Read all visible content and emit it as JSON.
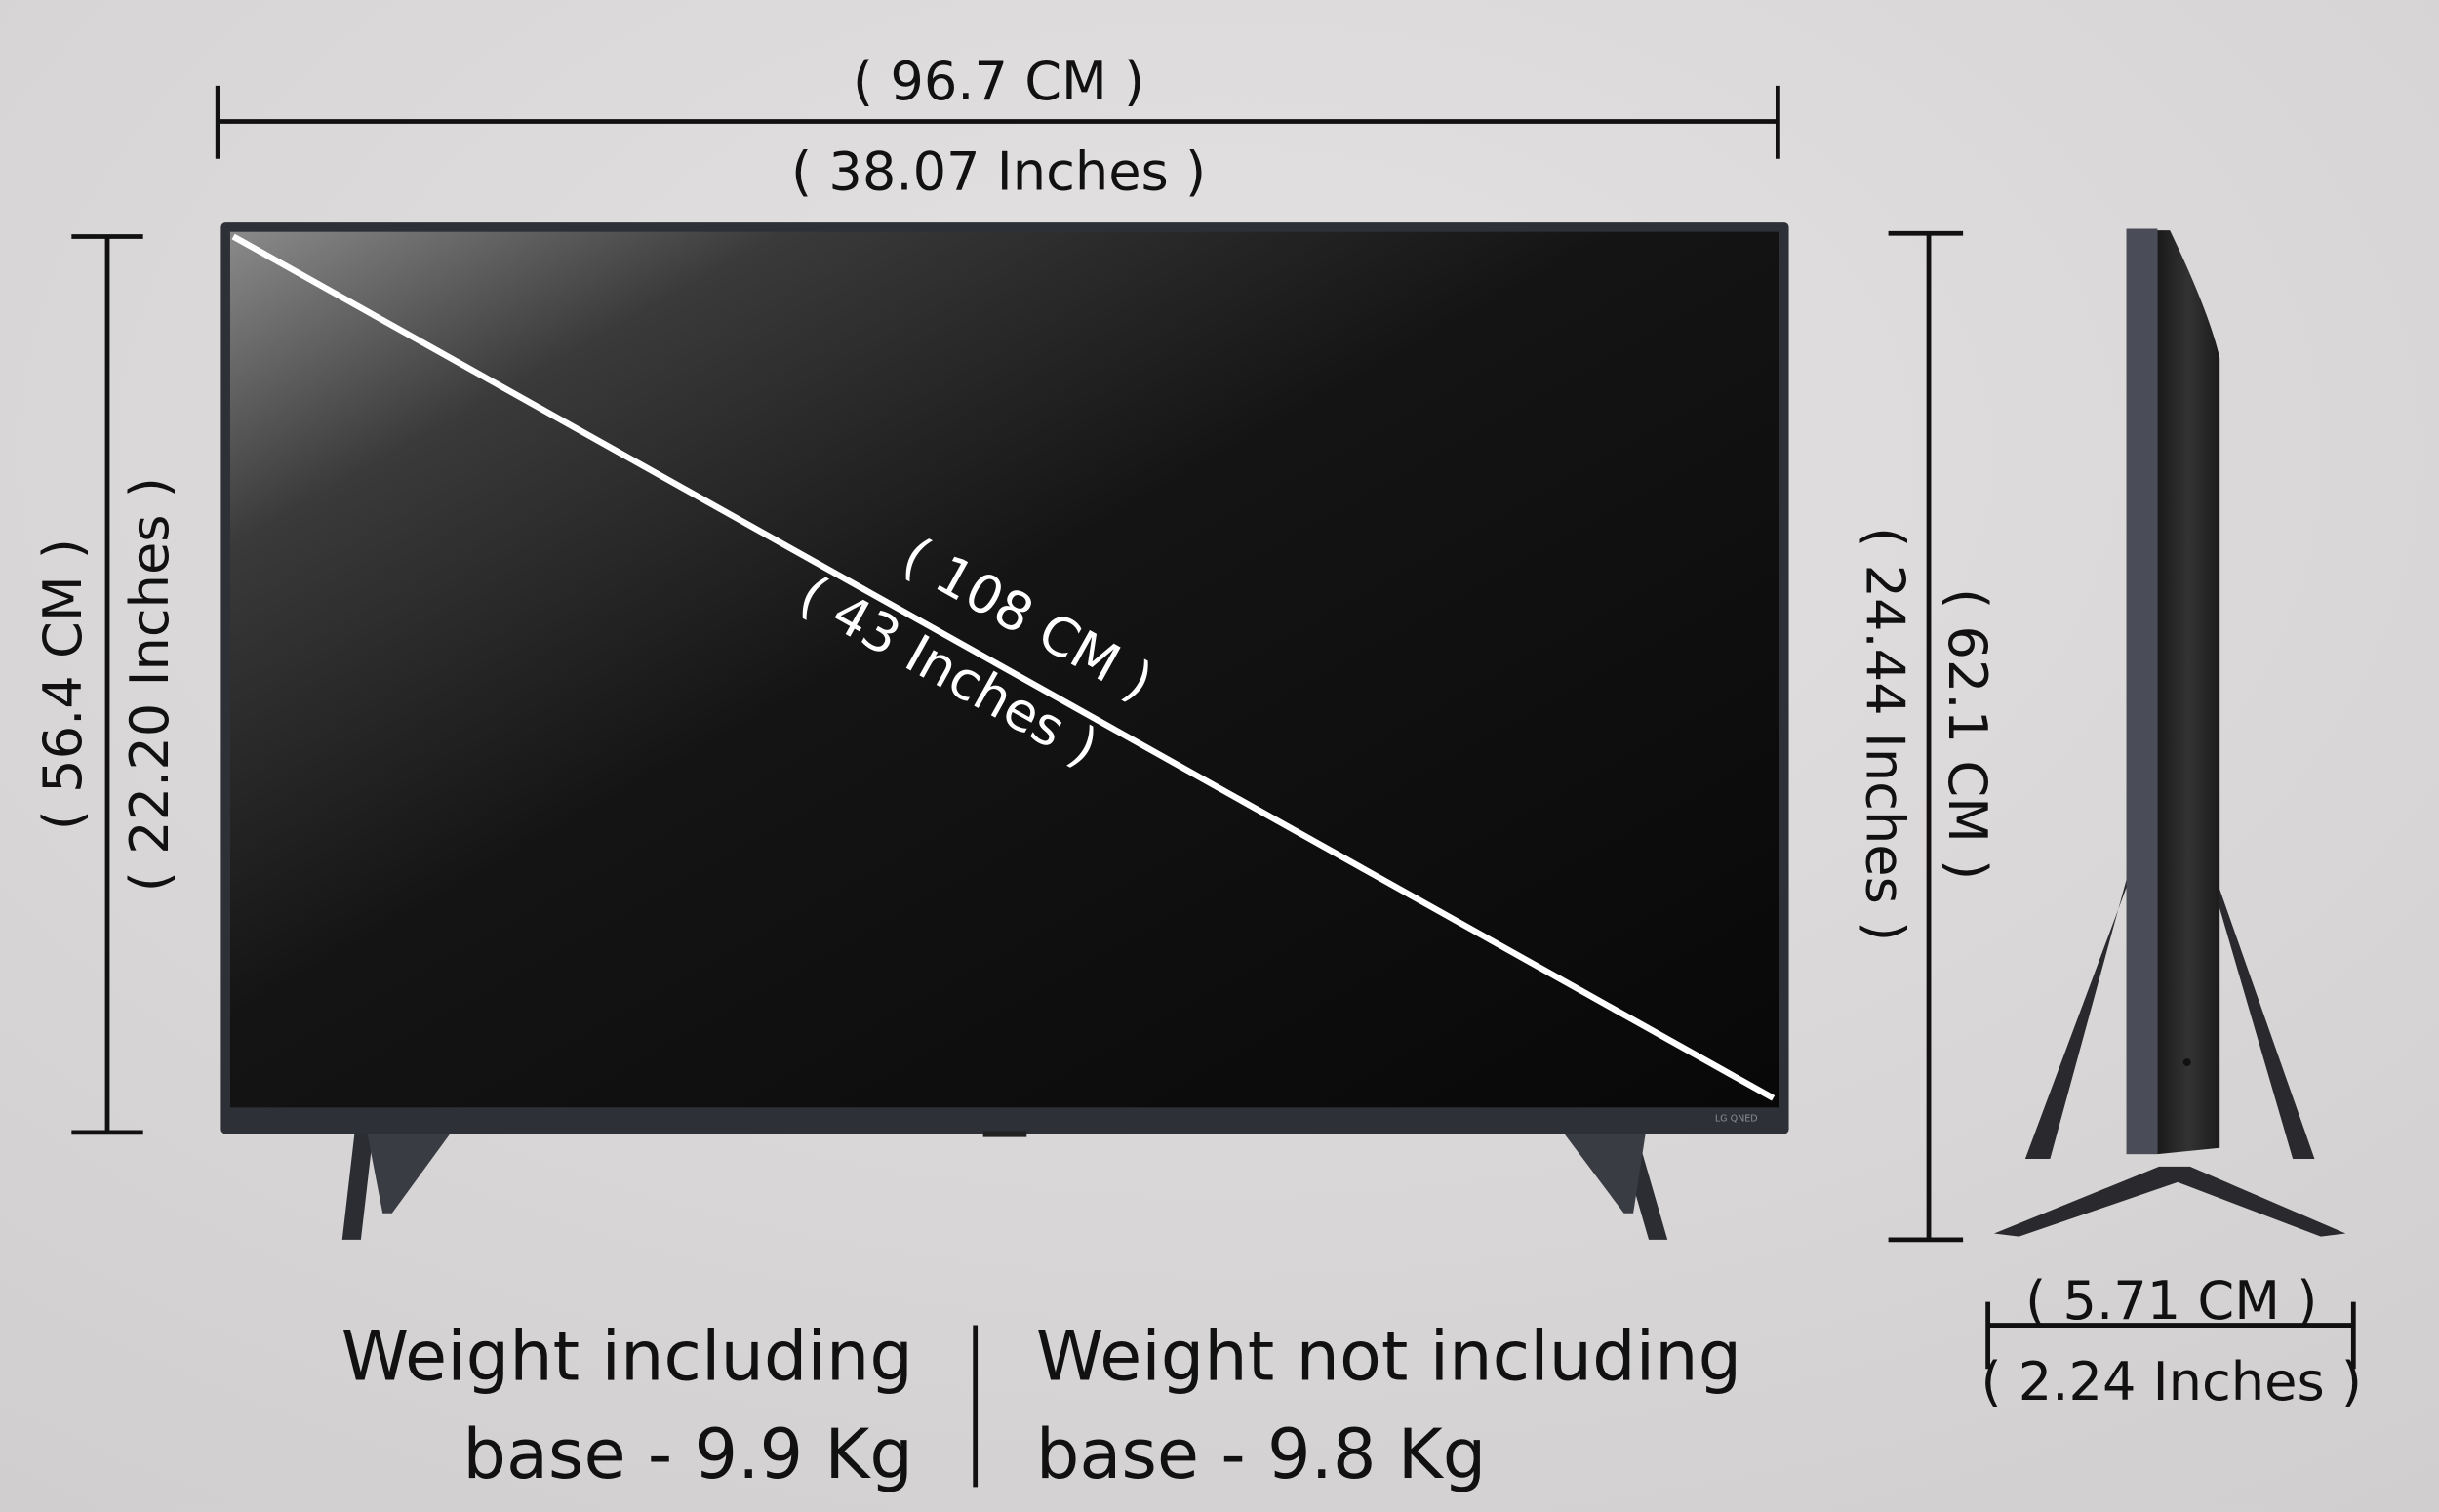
{
  "dimensions": {
    "width_cm": "( 96.7 CM )",
    "width_in": "( 38.07 Inches )",
    "height_cm": "( 56.4 CM )",
    "height_in": "( 22.20 Inches )",
    "diagonal_cm": "( 108 CM )",
    "diagonal_in": "( 43 Inches )",
    "stand_height_in": "( 24.44 Inches )",
    "stand_height_cm": "( 62.1 CM )",
    "depth_cm": "( 5.71 CM )",
    "depth_in": "( 2.24 Inches )"
  },
  "weights": {
    "with_base_line1": "Weight including",
    "with_base_line2": "base - 9.9 Kg",
    "without_base_line1": "Weight not including",
    "without_base_line2": "base - 9.8 Kg"
  },
  "brand_logo": "LG QNED",
  "colors": {
    "background": "#d6d4d4",
    "bezel": "#2e3038",
    "screen": "#0c0c0c",
    "line": "#111111"
  }
}
